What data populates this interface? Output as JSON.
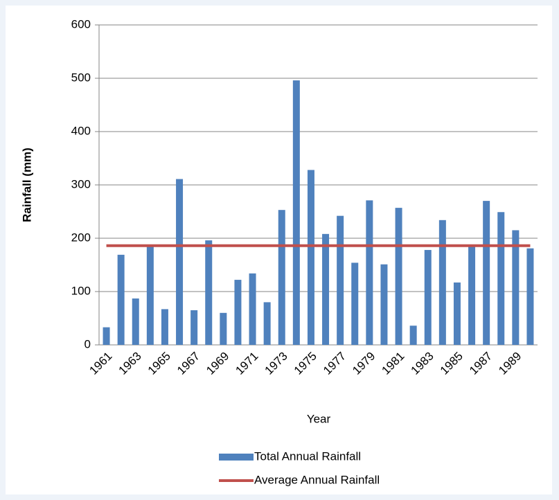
{
  "chart_data": {
    "type": "bar",
    "ylabel": "Rainfall (mm)",
    "xlabel": "Year",
    "categories": [
      "1961",
      null,
      "1963",
      null,
      "1965",
      null,
      "1967",
      null,
      "1969",
      null,
      "1971",
      null,
      "1973",
      null,
      "1975",
      null,
      "1977",
      null,
      "1979",
      null,
      "1981",
      null,
      "1983",
      null,
      "1985",
      null,
      "1987",
      null,
      "1989",
      null
    ],
    "series": [
      {
        "name": "Total Annual Rainfall",
        "color": "#4f81bd",
        "type": "bar",
        "values": [
          33,
          169,
          87,
          185,
          67,
          311,
          65,
          196,
          60,
          122,
          134,
          80,
          253,
          496,
          328,
          208,
          242,
          154,
          271,
          151,
          257,
          36,
          178,
          234,
          117,
          185,
          270,
          249,
          215,
          181
        ]
      },
      {
        "name": "Average Annual Rainfall",
        "color": "#c0504d",
        "type": "line",
        "values": [
          186,
          186,
          186,
          186,
          186,
          186,
          186,
          186,
          186,
          186,
          186,
          186,
          186,
          186,
          186,
          186,
          186,
          186,
          186,
          186,
          186,
          186,
          186,
          186,
          186,
          186,
          186,
          186,
          186,
          186
        ]
      }
    ],
    "ylim": [
      0,
      600
    ],
    "yticks": [
      0,
      100,
      200,
      300,
      400,
      500,
      600
    ],
    "grid": true
  }
}
